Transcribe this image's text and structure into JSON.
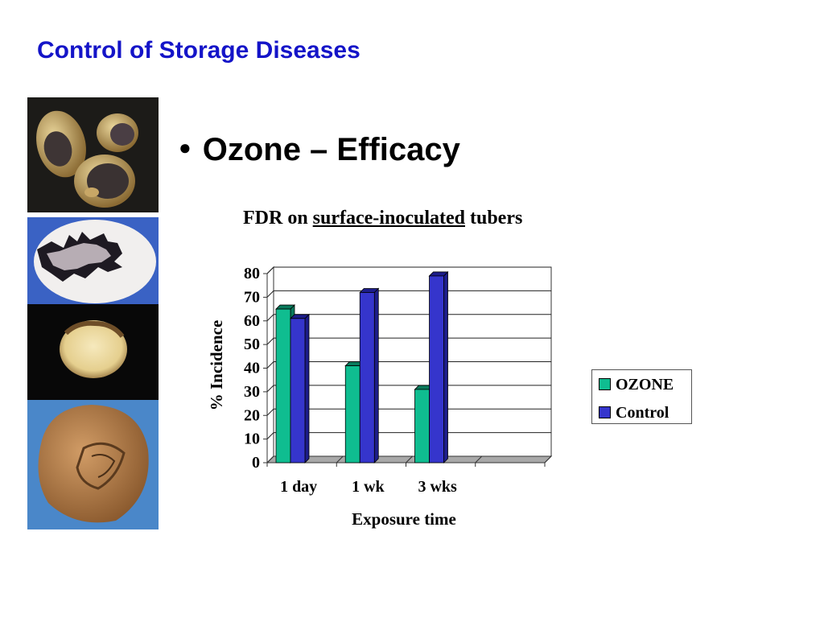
{
  "slide": {
    "title": "Control of Storage Diseases",
    "bullet": "Ozone – Efficacy"
  },
  "chart_title": {
    "prefix": "FDR on ",
    "underlined": "surface-inoculated",
    "suffix": " tubers"
  },
  "colors": {
    "title": "#1414c8",
    "ozone": "#0fbd90",
    "control": "#3535cc"
  },
  "chart_data": {
    "type": "bar",
    "title": "FDR on surface-inoculated tubers",
    "xlabel": "Exposure time",
    "ylabel": "%  Incidence",
    "categories": [
      "1 day",
      "1 wk",
      "3 wks"
    ],
    "series": [
      {
        "name": "OZONE",
        "values": [
          65,
          41,
          31
        ]
      },
      {
        "name": "Control",
        "values": [
          61,
          72,
          79
        ]
      }
    ],
    "ylim": [
      0,
      80
    ],
    "yticks": [
      0,
      10,
      20,
      30,
      40,
      50,
      60,
      70,
      80
    ],
    "grid": true,
    "style": "3d",
    "legend_position": "right"
  }
}
